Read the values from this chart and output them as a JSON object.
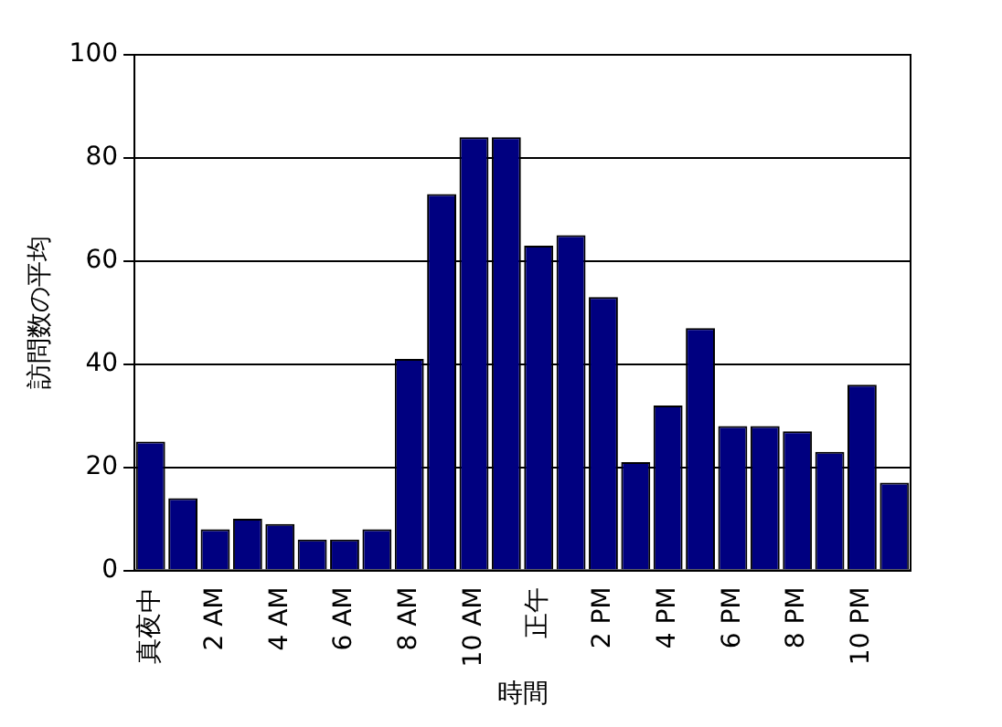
{
  "chart_data": {
    "type": "bar",
    "xlabel": "時間",
    "ylabel": "訪問数の平均",
    "categories": [
      "真夜中",
      null,
      "2 AM",
      null,
      "4 AM",
      null,
      "6 AM",
      null,
      "8 AM",
      null,
      "10 AM",
      null,
      "正午",
      null,
      "2 PM",
      null,
      "4 PM",
      null,
      "6 PM",
      null,
      "8 PM",
      null,
      "10 PM",
      null
    ],
    "values": [
      25,
      14,
      8,
      10,
      9,
      6,
      6,
      8,
      41,
      73,
      84,
      84,
      63,
      65,
      53,
      21,
      32,
      47,
      28,
      28,
      27,
      23,
      36,
      17
    ],
    "color": "#000080",
    "ylim": [
      0,
      100
    ],
    "yticks": [
      0,
      20,
      40,
      60,
      80,
      100
    ],
    "grid": "y",
    "legend": false
  }
}
